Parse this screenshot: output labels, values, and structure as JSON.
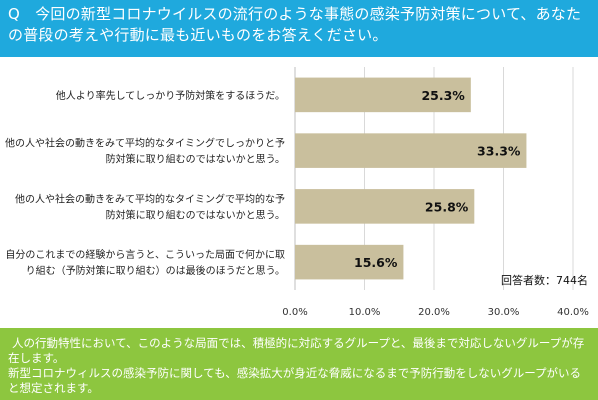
{
  "question": "Q　今回の新型コロナウイルスの流行のような事態の感染予防対策について、あなたの普段の考えや行動に最も近いものをお答えください。",
  "colors": {
    "header_bg": "#1fa9dd",
    "bar": "#c9bf9d",
    "footer_bg": "#8dc63f"
  },
  "respondents_note": "回答者数：744名",
  "footer": {
    "paragraph1": "人の行動特性において、このような局面では、積極的に対応するグループと、最後まで対応しないグループが存在します。",
    "paragraph2": "新型コロナウィルスの感染予防に関しても、感染拡大が身近な脅威になるまで予防行動をしないグループがいると想定されます。"
  },
  "chart_data": {
    "type": "bar",
    "orientation": "horizontal",
    "categories": [
      [
        "他人より率先してしっかり予防対策をするほうだ。"
      ],
      [
        "他の人や社会の動きをみて平均的なタイミングでしっかりと予",
        "防対策に取り組むのではないかと思う。"
      ],
      [
        "他の人や社会の動きをみて平均的なタイミングで平均的な予",
        "防対策に取り組むのではないかと思う。"
      ],
      [
        "自分のこれまでの経験から言うと、こういった局面で何かに取",
        "り組む（予防対策に取り組む）のは最後のほうだと思う。"
      ]
    ],
    "values": [
      25.3,
      33.3,
      25.8,
      15.6
    ],
    "value_labels": [
      "25.3%",
      "33.3%",
      "25.8%",
      "15.6%"
    ],
    "xlim": [
      0,
      40
    ],
    "xticks": [
      0,
      10,
      20,
      30,
      40
    ],
    "xtick_labels": [
      "0.0%",
      "10.0%",
      "20.0%",
      "30.0%",
      "40.0%"
    ],
    "grid": true
  }
}
